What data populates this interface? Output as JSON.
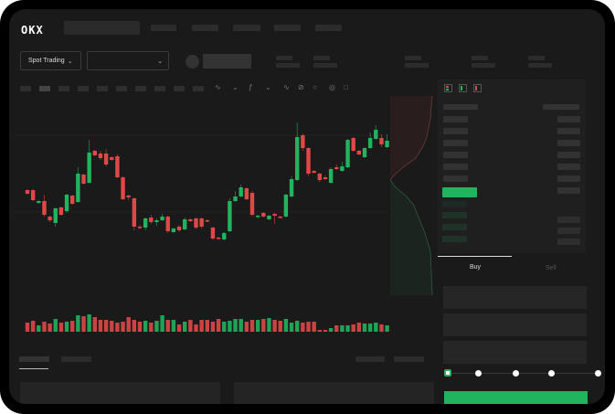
{
  "header": {
    "logo": "OKX"
  },
  "market_bar": {
    "product_selector": "Spot Trading",
    "pair_selector": ""
  },
  "order_form": {
    "tabs": [
      "Buy",
      "Sell"
    ],
    "active_tab": "Buy",
    "leverage_slider_value": 0
  },
  "colors": {
    "up": "#22b35e",
    "down": "#e04848",
    "background": "#1a1a1a"
  },
  "chart_data": {
    "type": "candlestick",
    "candles": [
      {
        "o": 97,
        "c": 93,
        "h": 98,
        "l": 92
      },
      {
        "o": 97,
        "c": 86,
        "h": 98,
        "l": 85
      },
      {
        "o": 83,
        "c": 85,
        "h": 86,
        "l": 82
      },
      {
        "o": 85,
        "c": 70,
        "h": 92,
        "l": 68
      },
      {
        "o": 68,
        "c": 64,
        "h": 69,
        "l": 62
      },
      {
        "o": 61,
        "c": 77,
        "h": 78,
        "l": 57
      },
      {
        "o": 78,
        "c": 70,
        "h": 79,
        "l": 69
      },
      {
        "o": 74,
        "c": 92,
        "h": 93,
        "l": 72
      },
      {
        "o": 91,
        "c": 82,
        "h": 92,
        "l": 81
      },
      {
        "o": 84,
        "c": 115,
        "h": 122,
        "l": 83
      },
      {
        "o": 114,
        "c": 104,
        "h": 115,
        "l": 103
      },
      {
        "o": 105,
        "c": 138,
        "h": 152,
        "l": 104
      },
      {
        "o": 140,
        "c": 135,
        "h": 141,
        "l": 134
      },
      {
        "o": 137,
        "c": 132,
        "h": 140,
        "l": 130
      },
      {
        "o": 137,
        "c": 125,
        "h": 142,
        "l": 123
      },
      {
        "o": 133,
        "c": 130,
        "h": 134,
        "l": 129
      },
      {
        "o": 134,
        "c": 111,
        "h": 136,
        "l": 110
      },
      {
        "o": 111,
        "c": 87,
        "h": 112,
        "l": 86
      },
      {
        "o": 91,
        "c": 89,
        "h": 92,
        "l": 86
      },
      {
        "o": 88,
        "c": 57,
        "h": 89,
        "l": 53
      },
      {
        "o": 57,
        "c": 56,
        "h": 59,
        "l": 54
      },
      {
        "o": 56,
        "c": 66,
        "h": 67,
        "l": 53
      },
      {
        "o": 67,
        "c": 62,
        "h": 70,
        "l": 60
      },
      {
        "o": 62,
        "c": 64,
        "h": 66,
        "l": 58
      },
      {
        "o": 64,
        "c": 68,
        "h": 71,
        "l": 63
      },
      {
        "o": 68,
        "c": 52,
        "h": 69,
        "l": 50
      },
      {
        "o": 51,
        "c": 55,
        "h": 56,
        "l": 50
      },
      {
        "o": 57,
        "c": 53,
        "h": 59,
        "l": 51
      },
      {
        "o": 54,
        "c": 65,
        "h": 67,
        "l": 53
      },
      {
        "o": 65,
        "c": 63,
        "h": 66,
        "l": 62
      },
      {
        "o": 66,
        "c": 56,
        "h": 67,
        "l": 54
      },
      {
        "o": 66,
        "c": 57,
        "h": 67,
        "l": 55
      },
      {
        "o": 64,
        "c": 63,
        "h": 65,
        "l": 62
      },
      {
        "o": 56,
        "c": 44,
        "h": 57,
        "l": 42
      },
      {
        "o": 45,
        "c": 44,
        "h": 46,
        "l": 43
      },
      {
        "o": 43,
        "c": 50,
        "h": 51,
        "l": 42
      },
      {
        "o": 52,
        "c": 85,
        "h": 88,
        "l": 51
      },
      {
        "o": 85,
        "c": 90,
        "h": 96,
        "l": 84
      },
      {
        "o": 90,
        "c": 100,
        "h": 103,
        "l": 89
      },
      {
        "o": 99,
        "c": 87,
        "h": 100,
        "l": 86
      },
      {
        "o": 94,
        "c": 70,
        "h": 96,
        "l": 68
      },
      {
        "o": 68,
        "c": 69,
        "h": 70,
        "l": 66
      },
      {
        "o": 72,
        "c": 68,
        "h": 73,
        "l": 67
      },
      {
        "o": 65,
        "c": 69,
        "h": 70,
        "l": 64
      },
      {
        "o": 71,
        "c": 69,
        "h": 72,
        "l": 60
      },
      {
        "o": 68,
        "c": 67,
        "h": 69,
        "l": 66
      },
      {
        "o": 68,
        "c": 92,
        "h": 93,
        "l": 67
      },
      {
        "o": 90,
        "c": 109,
        "h": 112,
        "l": 89
      },
      {
        "o": 108,
        "c": 155,
        "h": 171,
        "l": 107
      },
      {
        "o": 157,
        "c": 143,
        "h": 159,
        "l": 140
      },
      {
        "o": 143,
        "c": 115,
        "h": 144,
        "l": 112
      },
      {
        "o": 118,
        "c": 116,
        "h": 119,
        "l": 115
      },
      {
        "o": 115,
        "c": 108,
        "h": 116,
        "l": 106
      },
      {
        "o": 111,
        "c": 109,
        "h": 113,
        "l": 108
      },
      {
        "o": 105,
        "c": 120,
        "h": 122,
        "l": 104
      },
      {
        "o": 122,
        "c": 120,
        "h": 125,
        "l": 119
      },
      {
        "o": 118,
        "c": 123,
        "h": 128,
        "l": 117
      },
      {
        "o": 122,
        "c": 152,
        "h": 153,
        "l": 121
      },
      {
        "o": 154,
        "c": 140,
        "h": 155,
        "l": 139
      },
      {
        "o": 140,
        "c": 136,
        "h": 141,
        "l": 135
      },
      {
        "o": 133,
        "c": 143,
        "h": 144,
        "l": 132
      },
      {
        "o": 143,
        "c": 154,
        "h": 160,
        "l": 142
      },
      {
        "o": 153,
        "c": 163,
        "h": 168,
        "l": 152
      },
      {
        "o": 154,
        "c": 147,
        "h": 158,
        "l": 144
      },
      {
        "o": 144,
        "c": 151,
        "h": 158,
        "l": 143
      }
    ],
    "volume": [
      10,
      12,
      7,
      11,
      9,
      14,
      10,
      11,
      12,
      18,
      17,
      19,
      16,
      13,
      13,
      12,
      10,
      11,
      16,
      13,
      11,
      12,
      10,
      12,
      18,
      13,
      13,
      8,
      11,
      13,
      8,
      13,
      13,
      11,
      14,
      11,
      12,
      14,
      14,
      11,
      13,
      13,
      14,
      15,
      13,
      12,
      14,
      10,
      12,
      10,
      11,
      11,
      2,
      2,
      4,
      7,
      7,
      7,
      8,
      10,
      9,
      9,
      10,
      8,
      7
    ]
  }
}
